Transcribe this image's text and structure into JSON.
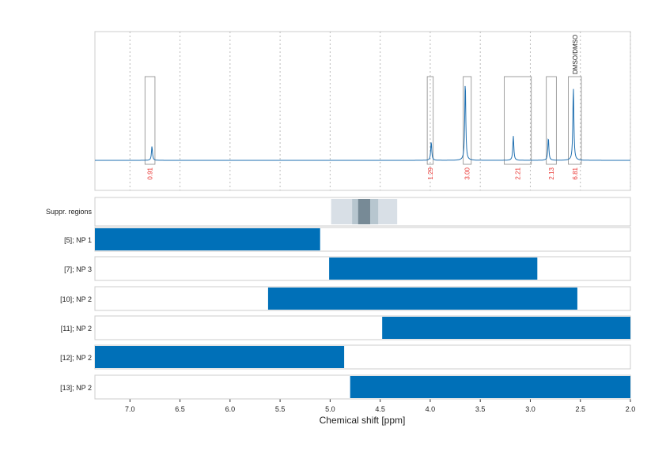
{
  "chart_data": {
    "type": "line",
    "xlabel": "Chemical shift [ppm]",
    "xlim": [
      7.35,
      2.0
    ],
    "x_reversed": true,
    "xticks": [
      "7.0",
      "6.5",
      "6.0",
      "5.5",
      "5.0",
      "4.5",
      "4.0",
      "3.5",
      "3.0",
      "2.5",
      "2.0"
    ],
    "grid": true,
    "spectrum": {
      "color": "#1f6fb0",
      "peaks": [
        {
          "ppm": 6.78,
          "height": 18
        },
        {
          "ppm": 3.99,
          "height": 24
        },
        {
          "ppm": 3.65,
          "height": 101
        },
        {
          "ppm": 3.17,
          "height": 31
        },
        {
          "ppm": 2.82,
          "height": 29
        },
        {
          "ppm": 2.57,
          "height": 93
        }
      ]
    },
    "integrals": [
      {
        "from": 6.85,
        "to": 6.75,
        "value": "0.91"
      },
      {
        "from": 4.03,
        "to": 3.97,
        "value": "1.29"
      },
      {
        "from": 3.67,
        "to": 3.59,
        "value": "3.00"
      },
      {
        "from": 3.26,
        "to": 2.99,
        "value": "2.21"
      },
      {
        "from": 2.84,
        "to": 2.74,
        "value": "2.13"
      },
      {
        "from": 2.62,
        "to": 2.49,
        "value": "6.81",
        "annotation": "DMSO/DMSO"
      }
    ],
    "suppressed_regions": {
      "label": "Suppr. regions",
      "regions": [
        {
          "from": 4.99,
          "to": 4.33,
          "color": "#d8dfe6"
        },
        {
          "from": 4.78,
          "to": 4.52,
          "color": "#b7c6cf"
        },
        {
          "from": 4.72,
          "to": 4.6,
          "color": "#778a96"
        }
      ]
    },
    "ranges": {
      "color": "#0070b8",
      "rows": [
        {
          "label": "[5]; NP 1",
          "from": 7.35,
          "to": 5.1
        },
        {
          "label": "[7]; NP 3",
          "from": 5.01,
          "to": 2.93
        },
        {
          "label": "[10]; NP 2",
          "from": 5.62,
          "to": 2.53
        },
        {
          "label": "[11]; NP 2",
          "from": 4.48,
          "to": 2.0
        },
        {
          "label": "[12]; NP 2",
          "from": 7.35,
          "to": 4.86
        },
        {
          "label": "[13]; NP 2",
          "from": 4.8,
          "to": 2.0
        }
      ]
    }
  }
}
